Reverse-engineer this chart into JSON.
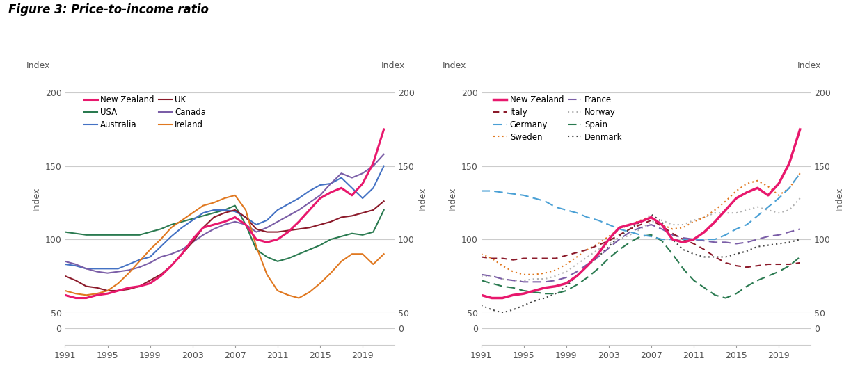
{
  "title": "Figure 3: Price-to-income ratio",
  "years": [
    1991,
    1992,
    1993,
    1994,
    1995,
    1996,
    1997,
    1998,
    1999,
    2000,
    2001,
    2002,
    2003,
    2004,
    2005,
    2006,
    2007,
    2008,
    2009,
    2010,
    2011,
    2012,
    2013,
    2014,
    2015,
    2016,
    2017,
    2018,
    2019,
    2020,
    2021
  ],
  "left_panel": {
    "New Zealand": [
      62,
      60,
      60,
      62,
      63,
      65,
      67,
      68,
      70,
      75,
      82,
      90,
      100,
      108,
      110,
      112,
      115,
      110,
      100,
      98,
      100,
      105,
      112,
      120,
      128,
      132,
      135,
      130,
      138,
      152,
      175
    ],
    "Australia": [
      83,
      82,
      80,
      80,
      80,
      80,
      83,
      86,
      88,
      95,
      102,
      108,
      113,
      118,
      120,
      120,
      119,
      115,
      110,
      113,
      120,
      124,
      128,
      133,
      137,
      138,
      142,
      135,
      128,
      135,
      150
    ],
    "Canada": [
      85,
      83,
      80,
      78,
      77,
      78,
      79,
      81,
      84,
      88,
      90,
      93,
      98,
      103,
      107,
      110,
      112,
      110,
      105,
      108,
      112,
      116,
      120,
      125,
      130,
      138,
      145,
      142,
      145,
      150,
      158
    ],
    "USA": [
      105,
      104,
      103,
      103,
      103,
      103,
      103,
      103,
      105,
      107,
      110,
      112,
      114,
      116,
      118,
      120,
      123,
      110,
      93,
      88,
      85,
      87,
      90,
      93,
      96,
      100,
      102,
      104,
      103,
      105,
      120
    ],
    "UK": [
      75,
      72,
      68,
      67,
      65,
      65,
      66,
      68,
      72,
      76,
      82,
      90,
      98,
      108,
      115,
      118,
      120,
      115,
      107,
      105,
      105,
      106,
      107,
      108,
      110,
      112,
      115,
      116,
      118,
      120,
      126
    ],
    "Ireland": [
      65,
      63,
      62,
      63,
      65,
      70,
      77,
      85,
      93,
      100,
      108,
      113,
      118,
      123,
      125,
      128,
      130,
      120,
      95,
      76,
      65,
      62,
      60,
      64,
      70,
      77,
      85,
      90,
      90,
      83,
      90
    ]
  },
  "right_panel": {
    "New Zealand": [
      62,
      60,
      60,
      62,
      63,
      65,
      67,
      68,
      70,
      75,
      82,
      90,
      100,
      108,
      110,
      112,
      115,
      110,
      100,
      98,
      100,
      105,
      112,
      120,
      128,
      132,
      135,
      130,
      138,
      152,
      175
    ],
    "Germany": [
      133,
      133,
      132,
      131,
      130,
      128,
      126,
      122,
      120,
      118,
      115,
      113,
      110,
      107,
      105,
      103,
      102,
      100,
      100,
      100,
      100,
      100,
      100,
      103,
      107,
      110,
      116,
      122,
      128,
      135,
      145
    ],
    "France": [
      76,
      75,
      73,
      72,
      71,
      71,
      71,
      72,
      74,
      78,
      83,
      88,
      94,
      100,
      105,
      108,
      110,
      107,
      103,
      101,
      100,
      99,
      98,
      98,
      97,
      98,
      100,
      102,
      103,
      105,
      107
    ],
    "Spain": [
      72,
      70,
      68,
      67,
      65,
      64,
      63,
      63,
      65,
      69,
      74,
      80,
      87,
      93,
      98,
      102,
      103,
      99,
      90,
      80,
      72,
      67,
      62,
      60,
      63,
      68,
      72,
      75,
      78,
      82,
      88
    ],
    "Italy": [
      88,
      87,
      87,
      86,
      87,
      87,
      87,
      87,
      89,
      91,
      93,
      96,
      99,
      103,
      107,
      110,
      113,
      109,
      104,
      100,
      97,
      93,
      88,
      84,
      82,
      81,
      82,
      83,
      83,
      83,
      84
    ],
    "Sweden": [
      90,
      87,
      82,
      78,
      76,
      76,
      77,
      79,
      83,
      88,
      93,
      97,
      102,
      107,
      110,
      113,
      115,
      110,
      107,
      108,
      112,
      115,
      120,
      126,
      133,
      138,
      140,
      136,
      130,
      135,
      145
    ],
    "Norway": [
      75,
      75,
      73,
      72,
      72,
      73,
      73,
      75,
      78,
      83,
      88,
      93,
      97,
      100,
      103,
      107,
      112,
      113,
      110,
      110,
      113,
      115,
      118,
      118,
      118,
      120,
      122,
      120,
      118,
      120,
      128
    ],
    "Denmark": [
      55,
      52,
      50,
      52,
      55,
      58,
      60,
      63,
      68,
      75,
      82,
      88,
      95,
      102,
      107,
      112,
      117,
      112,
      100,
      93,
      90,
      88,
      88,
      88,
      90,
      92,
      95,
      96,
      97,
      98,
      100
    ]
  },
  "colors_left": {
    "New Zealand": "#e8186d",
    "Australia": "#4472c4",
    "Canada": "#7b5ea7",
    "USA": "#2a7a50",
    "UK": "#8B1a2a",
    "Ireland": "#e07820"
  },
  "colors_right": {
    "New Zealand": "#e8186d",
    "Germany": "#4aa0d5",
    "France": "#7b5ea7",
    "Spain": "#2a7a50",
    "Italy": "#8B1a2a",
    "Sweden": "#e07820",
    "Norway": "#b0b0b0",
    "Denmark": "#444444"
  },
  "ylim_main": [
    50,
    205
  ],
  "ylim_full": [
    0,
    205
  ],
  "yticks_main": [
    50,
    100,
    150,
    200
  ],
  "ylabel": "Index",
  "xticks": [
    1991,
    1995,
    1999,
    2003,
    2007,
    2011,
    2015,
    2019
  ],
  "xmin": 1991,
  "xmax": 2022
}
